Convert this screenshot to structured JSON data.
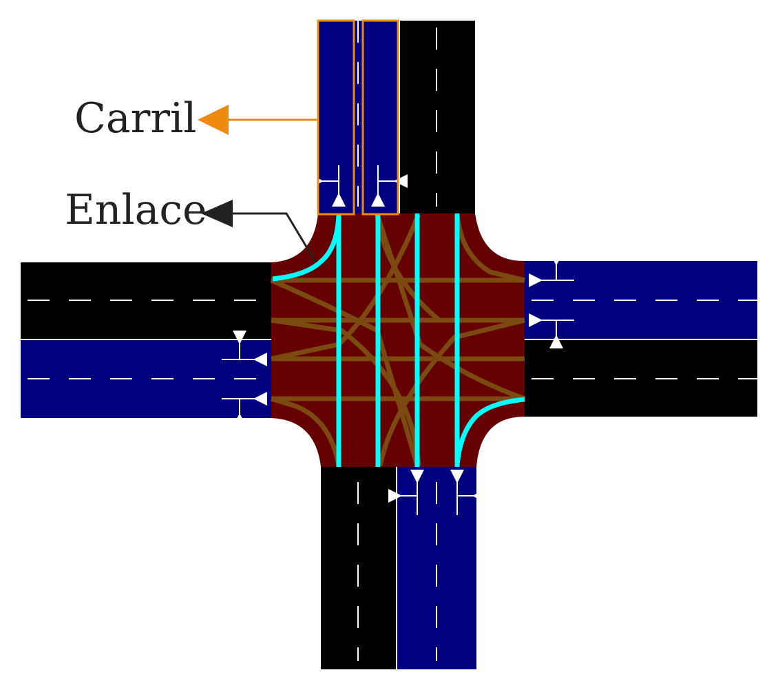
{
  "labels": {
    "lane": "Carril",
    "link": "Enlace"
  },
  "colors": {
    "background": "#ffffff",
    "road": "#000000",
    "incoming_lane": "#000080",
    "junction": "#660000",
    "link_straight": "#00ffff",
    "link_turn": "#7a4a10",
    "lane_highlight": "#ee8a10",
    "link_pointer": "#222222",
    "marking": "#ffffff"
  }
}
